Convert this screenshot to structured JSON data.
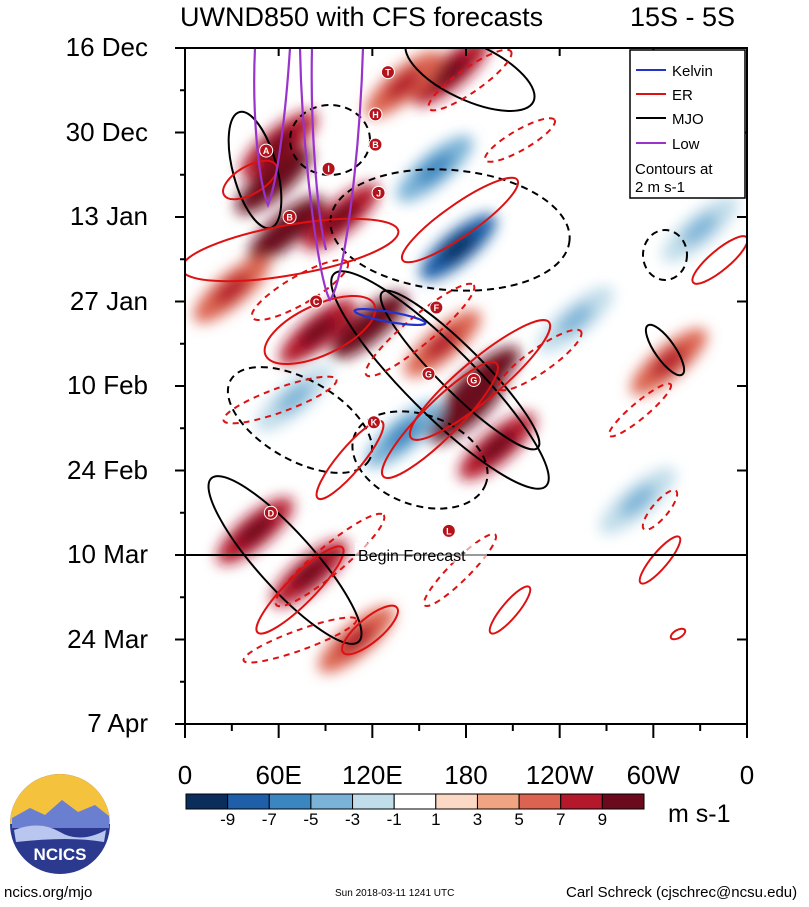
{
  "chart_data": {
    "type": "heatmap",
    "title_left": "UWND850 with CFS forecasts",
    "title_right": "15S - 5S",
    "x_axis": {
      "ticks": [
        {
          "lon": 0,
          "label": "0"
        },
        {
          "lon": 60,
          "label": "60E"
        },
        {
          "lon": 120,
          "label": "120E"
        },
        {
          "lon": 180,
          "label": "180"
        },
        {
          "lon": 240,
          "label": "120W"
        },
        {
          "lon": 300,
          "label": "60W"
        },
        {
          "lon": 360,
          "label": "0"
        }
      ],
      "range": [
        0,
        360
      ]
    },
    "y_axis": {
      "ticks": [
        {
          "day": 0,
          "label": "16 Dec"
        },
        {
          "day": 14,
          "label": "30 Dec"
        },
        {
          "day": 28,
          "label": "13 Jan"
        },
        {
          "day": 42,
          "label": "27 Jan"
        },
        {
          "day": 56,
          "label": "10 Feb"
        },
        {
          "day": 70,
          "label": "24 Feb"
        },
        {
          "day": 84,
          "label": "10 Mar"
        },
        {
          "day": 98,
          "label": "24 Mar"
        },
        {
          "day": 112,
          "label": "7 Apr"
        }
      ],
      "range_days": [
        0,
        112
      ],
      "direction": "time increasing downward"
    },
    "forecast_start": {
      "day": 84,
      "label": "Begin Forecast"
    },
    "legend": {
      "placement": "top-right",
      "entries": [
        {
          "name": "Kelvin",
          "color": "#2233cc"
        },
        {
          "name": "ER",
          "color": "#dd1111"
        },
        {
          "name": "MJO",
          "color": "#000000"
        },
        {
          "name": "Low",
          "color": "#9933cc"
        }
      ],
      "note": "Contours at 2 m s-1"
    },
    "colorbar": {
      "units": "m s-1",
      "labels": [
        "-9",
        "-7",
        "-5",
        "-3",
        "-1",
        "1",
        "3",
        "5",
        "7",
        "9"
      ],
      "colors": [
        "#0b2d5b",
        "#1f5ea8",
        "#3a86c0",
        "#7ab3d7",
        "#c1ddea",
        "#ffffff",
        "#fbd9c4",
        "#f0a482",
        "#dc6350",
        "#b3192b",
        "#6b0a1c"
      ]
    },
    "anomaly_centers": [
      {
        "lon": 60,
        "day": 16,
        "value": 7
      },
      {
        "lon": 57,
        "day": 22,
        "value": 9
      },
      {
        "lon": 65,
        "day": 30,
        "value": 9
      },
      {
        "lon": 100,
        "day": 28,
        "value": 7
      },
      {
        "lon": 30,
        "day": 40,
        "value": 5
      },
      {
        "lon": 118,
        "day": 46,
        "value": 9
      },
      {
        "lon": 85,
        "day": 47,
        "value": 7
      },
      {
        "lon": 165,
        "day": 49,
        "value": 5
      },
      {
        "lon": 190,
        "day": 55,
        "value": 9
      },
      {
        "lon": 180,
        "day": 60,
        "value": 9
      },
      {
        "lon": 200,
        "day": 66,
        "value": 7
      },
      {
        "lon": 45,
        "day": 80,
        "value": 7
      },
      {
        "lon": 80,
        "day": 87,
        "value": 7
      },
      {
        "lon": 110,
        "day": 98,
        "value": 5
      },
      {
        "lon": 310,
        "day": 52,
        "value": 5
      },
      {
        "lon": 170,
        "day": 4,
        "value": 7
      },
      {
        "lon": 140,
        "day": 6,
        "value": 5
      },
      {
        "lon": 175,
        "day": 33,
        "value": -9
      },
      {
        "lon": 160,
        "day": 20,
        "value": -5
      },
      {
        "lon": 140,
        "day": 64,
        "value": -5
      },
      {
        "lon": 70,
        "day": 58,
        "value": -3
      },
      {
        "lon": 250,
        "day": 45,
        "value": -3
      },
      {
        "lon": 290,
        "day": 75,
        "value": -3
      },
      {
        "lon": 330,
        "day": 30,
        "value": -3
      }
    ],
    "storm_labels": [
      {
        "letter": "T",
        "lon": 130,
        "day": 4
      },
      {
        "letter": "H",
        "lon": 122,
        "day": 11
      },
      {
        "letter": "A",
        "lon": 52,
        "day": 17
      },
      {
        "letter": "B",
        "lon": 122,
        "day": 16
      },
      {
        "letter": "I",
        "lon": 92,
        "day": 20
      },
      {
        "letter": "J",
        "lon": 124,
        "day": 24
      },
      {
        "letter": "B",
        "lon": 67,
        "day": 28
      },
      {
        "letter": "C",
        "lon": 84,
        "day": 42
      },
      {
        "letter": "F",
        "lon": 161,
        "day": 43
      },
      {
        "letter": "G",
        "lon": 156,
        "day": 54
      },
      {
        "letter": "G",
        "lon": 185,
        "day": 55
      },
      {
        "letter": "K",
        "lon": 121,
        "day": 62
      },
      {
        "letter": "D",
        "lon": 55,
        "day": 77
      },
      {
        "letter": "L",
        "lon": 169,
        "day": 80
      }
    ]
  },
  "footer": {
    "logo_text": "NCICS",
    "url": "ncics.org/mjo",
    "timestamp": "Sun 2018-03-11 1241 UTC",
    "author": "Carl Schreck (cjschrec@ncsu.edu)"
  }
}
